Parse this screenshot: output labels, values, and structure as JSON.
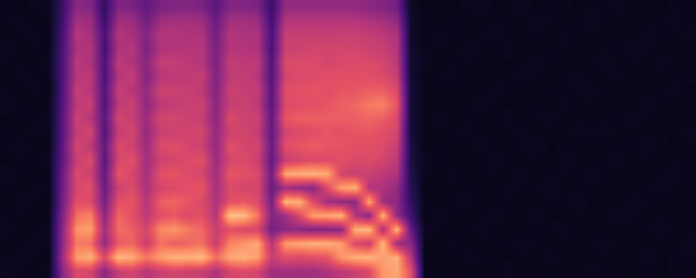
{
  "chart_data": {
    "type": "heatmap",
    "tick_labels": false,
    "zlim": [
      0,
      100
    ],
    "cells": [
      [
        6,
        5,
        4,
        6,
        5,
        4,
        5,
        6,
        4,
        5,
        5,
        4,
        6,
        5,
        4,
        5,
        6,
        4,
        5,
        5
      ],
      [
        5,
        6,
        5,
        4,
        5,
        6,
        4,
        5,
        5,
        6,
        4,
        5,
        5,
        4,
        6,
        5,
        4,
        5,
        6,
        4
      ],
      [
        4,
        5,
        6,
        5,
        4,
        5,
        6,
        4,
        5,
        4,
        6,
        5,
        4,
        6,
        5,
        4,
        5,
        6,
        4,
        5
      ],
      [
        6,
        4,
        5,
        6,
        5,
        4,
        5,
        5,
        6,
        4,
        5,
        6,
        5,
        4,
        5,
        6,
        5,
        4,
        5,
        6
      ],
      [
        40,
        45,
        42,
        40,
        38,
        35,
        34,
        33,
        30,
        30,
        28,
        28,
        27,
        26,
        26,
        25,
        25,
        24,
        22,
        20
      ],
      [
        60,
        80,
        72,
        78,
        70,
        62,
        58,
        60,
        55,
        58,
        54,
        56,
        52,
        55,
        50,
        52,
        48,
        50,
        46,
        40
      ],
      [
        58,
        84,
        70,
        80,
        74,
        60,
        62,
        56,
        60,
        52,
        58,
        50,
        55,
        50,
        52,
        48,
        50,
        46,
        44,
        38
      ],
      [
        40,
        60,
        42,
        45,
        40,
        35,
        32,
        30,
        28,
        30,
        26,
        28,
        25,
        26,
        24,
        25,
        22,
        24,
        20,
        18
      ],
      [
        55,
        86,
        65,
        70,
        68,
        62,
        56,
        64,
        58,
        60,
        54,
        58,
        52,
        55,
        50,
        53,
        48,
        50,
        45,
        38
      ],
      [
        58,
        82,
        68,
        66,
        62,
        64,
        60,
        58,
        62,
        56,
        58,
        54,
        56,
        50,
        54,
        48,
        50,
        46,
        44,
        36
      ],
      [
        50,
        72,
        55,
        58,
        52,
        50,
        48,
        46,
        45,
        44,
        42,
        44,
        40,
        42,
        38,
        40,
        36,
        38,
        34,
        30
      ],
      [
        55,
        80,
        70,
        75,
        62,
        66,
        58,
        62,
        56,
        60,
        55,
        58,
        52,
        56,
        50,
        54,
        48,
        50,
        44,
        36
      ],
      [
        58,
        85,
        66,
        78,
        64,
        68,
        60,
        64,
        58,
        62,
        56,
        58,
        54,
        56,
        52,
        54,
        50,
        50,
        46,
        38
      ],
      [
        56,
        84,
        68,
        72,
        60,
        64,
        62,
        60,
        60,
        58,
        58,
        56,
        55,
        55,
        52,
        52,
        50,
        48,
        46,
        38
      ],
      [
        55,
        86,
        70,
        68,
        62,
        60,
        64,
        58,
        62,
        56,
        58,
        54,
        56,
        52,
        54,
        50,
        50,
        48,
        45,
        36
      ],
      [
        48,
        70,
        55,
        55,
        50,
        48,
        46,
        45,
        44,
        42,
        42,
        40,
        40,
        38,
        38,
        36,
        36,
        34,
        32,
        28
      ],
      [
        58,
        82,
        74,
        62,
        88,
        62,
        60,
        64,
        58,
        62,
        56,
        60,
        54,
        56,
        52,
        54,
        50,
        50,
        46,
        38
      ],
      [
        60,
        84,
        78,
        60,
        86,
        64,
        58,
        62,
        60,
        58,
        58,
        56,
        56,
        54,
        54,
        52,
        50,
        48,
        46,
        38
      ],
      [
        58,
        80,
        82,
        58,
        72,
        60,
        58,
        60,
        56,
        58,
        54,
        56,
        52,
        54,
        50,
        52,
        48,
        48,
        44,
        36
      ],
      [
        45,
        55,
        50,
        35,
        38,
        35,
        32,
        34,
        30,
        32,
        30,
        30,
        28,
        28,
        26,
        26,
        24,
        24,
        22,
        20
      ],
      [
        45,
        62,
        80,
        40,
        45,
        85,
        45,
        82,
        55,
        62,
        58,
        64,
        60,
        62,
        58,
        60,
        56,
        55,
        50,
        42
      ],
      [
        45,
        60,
        82,
        40,
        60,
        84,
        42,
        84,
        58,
        64,
        60,
        66,
        62,
        62,
        60,
        60,
        56,
        54,
        50,
        42
      ],
      [
        45,
        62,
        84,
        38,
        80,
        60,
        40,
        85,
        60,
        66,
        62,
        66,
        62,
        64,
        60,
        60,
        58,
        55,
        50,
        42
      ],
      [
        48,
        64,
        84,
        38,
        82,
        45,
        60,
        82,
        60,
        64,
        64,
        66,
        64,
        62,
        62,
        58,
        58,
        54,
        50,
        42
      ],
      [
        52,
        78,
        80,
        40,
        85,
        42,
        80,
        58,
        62,
        64,
        62,
        66,
        66,
        64,
        62,
        60,
        58,
        55,
        50,
        42
      ],
      [
        55,
        84,
        60,
        84,
        50,
        40,
        84,
        55,
        60,
        62,
        64,
        66,
        68,
        64,
        62,
        60,
        58,
        55,
        50,
        42
      ],
      [
        60,
        85,
        55,
        86,
        40,
        82,
        50,
        55,
        60,
        62,
        64,
        68,
        72,
        66,
        62,
        60,
        56,
        54,
        48,
        40
      ],
      [
        78,
        80,
        86,
        48,
        84,
        45,
        48,
        52,
        58,
        60,
        62,
        66,
        74,
        66,
        60,
        58,
        55,
        52,
        46,
        38
      ],
      [
        82,
        84,
        45,
        85,
        42,
        40,
        42,
        48,
        52,
        55,
        58,
        60,
        64,
        60,
        55,
        52,
        50,
        48,
        42,
        34
      ],
      [
        62,
        50,
        40,
        30,
        22,
        18,
        16,
        14,
        12,
        12,
        10,
        10,
        10,
        10,
        9,
        9,
        8,
        8,
        8,
        7
      ],
      [
        5,
        4,
        5,
        6,
        4,
        5,
        4,
        5,
        6,
        4,
        5,
        4,
        5,
        5,
        4,
        6,
        5,
        4,
        5,
        4
      ],
      [
        4,
        5,
        4,
        5,
        6,
        4,
        5,
        4,
        5,
        5,
        4,
        6,
        4,
        5,
        5,
        4,
        5,
        6,
        4,
        5
      ],
      [
        5,
        4,
        6,
        4,
        5,
        5,
        4,
        6,
        4,
        5,
        5,
        4,
        5,
        4,
        6,
        5,
        4,
        5,
        5,
        4
      ],
      [
        4,
        6,
        4,
        5,
        4,
        6,
        5,
        4,
        5,
        4,
        6,
        5,
        4,
        5,
        4,
        5,
        6,
        4,
        5,
        5
      ],
      [
        5,
        5,
        4,
        6,
        5,
        4,
        5,
        5,
        4,
        6,
        4,
        5,
        6,
        4,
        5,
        4,
        5,
        5,
        4,
        6
      ],
      [
        4,
        5,
        5,
        4,
        6,
        5,
        4,
        5,
        6,
        4,
        5,
        4,
        5,
        6,
        4,
        5,
        4,
        6,
        5,
        4
      ],
      [
        6,
        4,
        5,
        5,
        4,
        5,
        6,
        4,
        5,
        5,
        4,
        6,
        4,
        5,
        5,
        4,
        6,
        4,
        5,
        5
      ],
      [
        4,
        5,
        6,
        4,
        5,
        4,
        5,
        6,
        4,
        5,
        6,
        4,
        5,
        4,
        6,
        5,
        4,
        5,
        4,
        6
      ],
      [
        5,
        4,
        5,
        5,
        6,
        4,
        5,
        4,
        5,
        6,
        4,
        5,
        5,
        4,
        5,
        6,
        4,
        5,
        6,
        4
      ],
      [
        4,
        6,
        4,
        5,
        4,
        5,
        6,
        5,
        4,
        4,
        5,
        6,
        4,
        5,
        4,
        5,
        5,
        4,
        5,
        5
      ],
      [
        5,
        4,
        5,
        6,
        4,
        5,
        4,
        5,
        6,
        5,
        4,
        4,
        6,
        5,
        5,
        4,
        5,
        6,
        4,
        5
      ],
      [
        4,
        5,
        4,
        4,
        5,
        6,
        5,
        4,
        5,
        4,
        6,
        5,
        4,
        5,
        6,
        4,
        5,
        4,
        5,
        4
      ],
      [
        6,
        4,
        5,
        5,
        4,
        4,
        5,
        6,
        4,
        5,
        5,
        4,
        5,
        6,
        4,
        5,
        4,
        5,
        6,
        5
      ],
      [
        4,
        5,
        6,
        4,
        5,
        5,
        4,
        5,
        5,
        4,
        6,
        5,
        4,
        4,
        5,
        6,
        5,
        4,
        4,
        5
      ],
      [
        5,
        4,
        4,
        5,
        6,
        4,
        5,
        4,
        6,
        5,
        4,
        5,
        5,
        4,
        6,
        4,
        5,
        5,
        4,
        6
      ],
      [
        4,
        5,
        5,
        4,
        5,
        6,
        4,
        5,
        4,
        5,
        5,
        6,
        4,
        5,
        4,
        5,
        6,
        4,
        5,
        4
      ],
      [
        5,
        6,
        4,
        5,
        4,
        5,
        5,
        4,
        5,
        6,
        4,
        5,
        6,
        4,
        5,
        4,
        5,
        6,
        4,
        5
      ],
      [
        4,
        4,
        5,
        6,
        5,
        4,
        6,
        5,
        4,
        5,
        5,
        4,
        5,
        5,
        4,
        6,
        4,
        5,
        5,
        4
      ],
      [
        5,
        5,
        4,
        4,
        5,
        5,
        4,
        6,
        5,
        4,
        4,
        5,
        4,
        6,
        5,
        4,
        5,
        4,
        6,
        5
      ],
      [
        4,
        5,
        6,
        5,
        4,
        4,
        5,
        4,
        5,
        5,
        6,
        4,
        5,
        4,
        5,
        5,
        4,
        6,
        4,
        5
      ]
    ]
  }
}
